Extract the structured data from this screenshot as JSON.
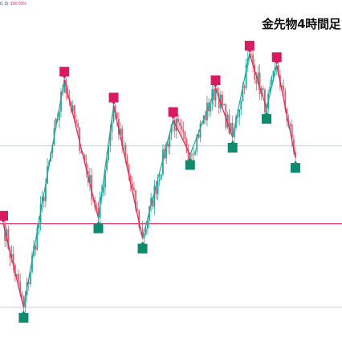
{
  "title": "金先物4時間足",
  "indicator": {
    "params": "0, 3)",
    "value": "-100.00%"
  },
  "colors": {
    "up": "#26a69a",
    "down": "#e05a68",
    "zigzag_up": "#26a69a",
    "zigzag_down": "#e0245e",
    "high_marker": "#d81b60",
    "low_marker": "#0e8a6f",
    "hline_red": "#e0245e",
    "hline_teal": "#8fd3cc",
    "hline_gray": "#c8c8c8"
  },
  "chart_data": {
    "type": "candlestick",
    "title": "金先物4時間足",
    "xlabel": "",
    "ylabel": "",
    "ylim": [
      0,
      100
    ],
    "price_levels": [
      {
        "name": "red-level",
        "value": 31
      },
      {
        "name": "teal-level",
        "value": 58
      },
      {
        "name": "gray-level",
        "value": 2
      }
    ],
    "zigzag_pivots": [
      {
        "bar": 0,
        "price": 31,
        "type": "high"
      },
      {
        "bar": 12,
        "price": 2,
        "type": "low"
      },
      {
        "bar": 36,
        "price": 81,
        "type": "high"
      },
      {
        "bar": 56,
        "price": 33,
        "type": "low"
      },
      {
        "bar": 65,
        "price": 72,
        "type": "high"
      },
      {
        "bar": 82,
        "price": 26,
        "type": "low"
      },
      {
        "bar": 100,
        "price": 67,
        "type": "high"
      },
      {
        "bar": 110,
        "price": 55,
        "type": "low"
      },
      {
        "bar": 125,
        "price": 78,
        "type": "high"
      },
      {
        "bar": 135,
        "price": 61,
        "type": "low"
      },
      {
        "bar": 145,
        "price": 90,
        "type": "high"
      },
      {
        "bar": 155,
        "price": 71,
        "type": "low"
      },
      {
        "bar": 161,
        "price": 86,
        "type": "high"
      },
      {
        "bar": 172,
        "price": 54,
        "type": "low"
      }
    ],
    "bar_count": 173
  }
}
